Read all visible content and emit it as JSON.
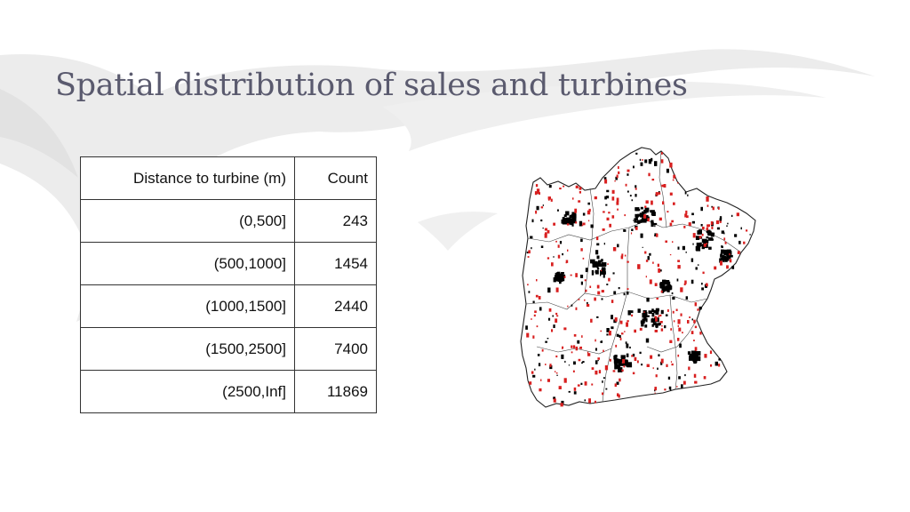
{
  "slide": {
    "title": "Spatial distribution of sales and turbines",
    "colors": {
      "title": "#5a5a6e",
      "sale_marker": "#d81f1f",
      "turbine_marker": "#000000",
      "background_swoosh": "#e6e6e6"
    },
    "table": {
      "headers": [
        "Distance to turbine (m)",
        "Count"
      ],
      "rows": [
        [
          "(0,500]",
          "243"
        ],
        [
          "(500,1000]",
          "1454"
        ],
        [
          "(1000,1500]",
          "2440"
        ],
        [
          "(1500,2500]",
          "7400"
        ],
        [
          "(2500,Inf]",
          "11869"
        ]
      ]
    }
  }
}
